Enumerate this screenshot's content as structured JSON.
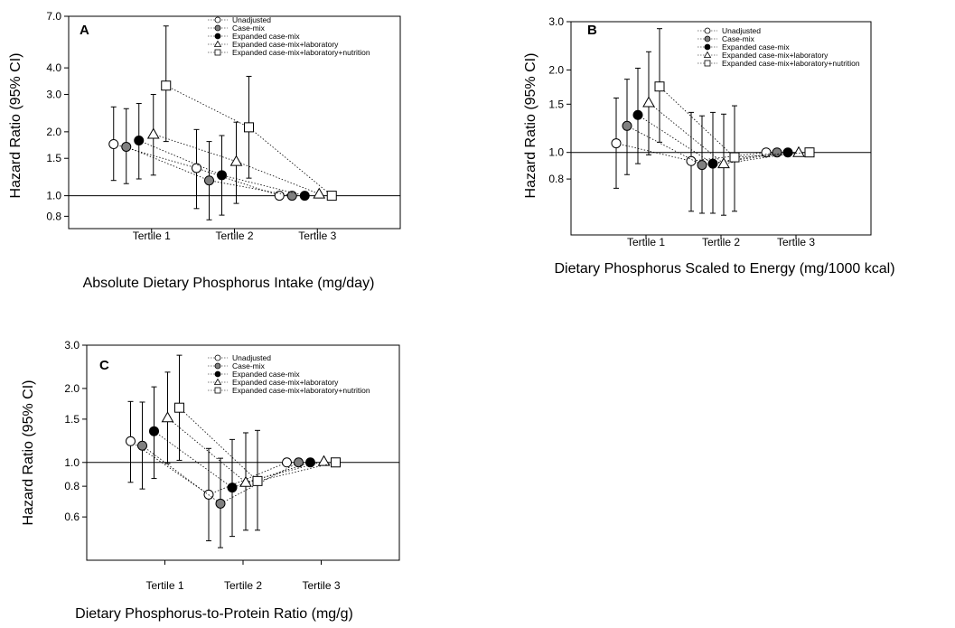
{
  "chart_data": [
    {
      "panel": "A",
      "type": "scatter",
      "title": "",
      "xlabel": "Absolute Dietary Phosphorus Intake (mg/day)",
      "ylabel": "Hazard Ratio (95% CI)",
      "y_scale": "log",
      "ylim": [
        0.7,
        7.0
      ],
      "yticks": [
        "0.8",
        "1.0",
        "1.5",
        "2.0",
        "3.0",
        "4.0",
        "7.0"
      ],
      "categories": [
        "Tertile 1",
        "Tertile 2",
        "Tertile 3"
      ],
      "reference_line": 1.0,
      "grid": false,
      "legend_position": "top-right",
      "series": [
        {
          "name": "Unadjusted",
          "marker": "circle-open",
          "values": [
            1.75,
            1.35,
            1.0
          ],
          "lower": [
            1.18,
            0.87,
            1.0
          ],
          "upper": [
            2.62,
            2.05,
            1.0
          ]
        },
        {
          "name": "Case-mix",
          "marker": "circle-gray",
          "values": [
            1.7,
            1.18,
            1.0
          ],
          "lower": [
            1.14,
            0.77,
            1.0
          ],
          "upper": [
            2.57,
            1.8,
            1.0
          ]
        },
        {
          "name": "Expanded case-mix",
          "marker": "circle-black",
          "values": [
            1.82,
            1.25,
            1.0
          ],
          "lower": [
            1.2,
            0.81,
            1.0
          ],
          "upper": [
            2.72,
            1.92,
            1.0
          ]
        },
        {
          "name": "Expanded case-mix+laboratory",
          "marker": "triangle-open",
          "values": [
            1.95,
            1.45,
            1.02
          ],
          "lower": [
            1.25,
            0.92,
            1.02
          ],
          "upper": [
            3.0,
            2.22,
            1.02
          ]
        },
        {
          "name": "Expanded case-mix+laboratory+nutrition",
          "marker": "square-open",
          "values": [
            3.3,
            2.1,
            1.0
          ],
          "lower": [
            1.8,
            1.21,
            1.0
          ],
          "upper": [
            6.3,
            3.65,
            1.0
          ]
        }
      ]
    },
    {
      "panel": "B",
      "type": "scatter",
      "title": "",
      "xlabel": "Dietary Phosphorus Scaled to Energy (mg/1000 kcal)",
      "ylabel": "Hazard Ratio (95% CI)",
      "y_scale": "log",
      "ylim": [
        0.5,
        3.0
      ],
      "yticks": [
        "0.8",
        "1.0",
        "1.5",
        "2.0",
        "3.0"
      ],
      "categories": [
        "Tertile 1",
        "Tertile 2",
        "Tertile 3"
      ],
      "reference_line": 1.0,
      "grid": false,
      "legend_position": "top-right",
      "series": [
        {
          "name": "Unadjusted",
          "marker": "circle-open",
          "values": [
            1.08,
            0.93,
            1.0
          ],
          "lower": [
            0.74,
            0.61,
            1.0
          ],
          "upper": [
            1.58,
            1.4,
            1.0
          ]
        },
        {
          "name": "Case-mix",
          "marker": "circle-gray",
          "values": [
            1.25,
            0.9,
            1.0
          ],
          "lower": [
            0.83,
            0.6,
            1.0
          ],
          "upper": [
            1.85,
            1.36,
            1.0
          ]
        },
        {
          "name": "Expanded case-mix",
          "marker": "circle-black",
          "values": [
            1.37,
            0.91,
            1.0
          ],
          "lower": [
            0.91,
            0.6,
            1.0
          ],
          "upper": [
            2.03,
            1.4,
            1.0
          ]
        },
        {
          "name": "Expanded case-mix+laboratory",
          "marker": "triangle-open",
          "values": [
            1.52,
            0.91,
            1.0
          ],
          "lower": [
            0.98,
            0.59,
            1.0
          ],
          "upper": [
            2.33,
            1.38,
            1.0
          ]
        },
        {
          "name": "Expanded case-mix+laboratory+nutrition",
          "marker": "square-open",
          "values": [
            1.74,
            0.96,
            1.0
          ],
          "lower": [
            1.09,
            0.61,
            1.0
          ],
          "upper": [
            2.83,
            1.48,
            1.0
          ]
        }
      ]
    },
    {
      "panel": "C",
      "type": "scatter",
      "title": "",
      "xlabel": "Dietary Phosphorus-to-Protein Ratio (mg/g)",
      "ylabel": "Hazard Ratio (95% CI)",
      "y_scale": "log",
      "ylim": [
        0.4,
        3.0
      ],
      "yticks": [
        "0.6",
        "0.8",
        "1.0",
        "1.5",
        "2.0",
        "3.0"
      ],
      "categories": [
        "Tertile 1",
        "Tertile 2",
        "Tertile 3"
      ],
      "reference_line": 1.0,
      "grid": false,
      "legend_position": "top-right",
      "series": [
        {
          "name": "Unadjusted",
          "marker": "circle-open",
          "values": [
            1.22,
            0.74,
            1.0
          ],
          "lower": [
            0.83,
            0.48,
            1.0
          ],
          "upper": [
            1.77,
            1.14,
            1.0
          ]
        },
        {
          "name": "Case-mix",
          "marker": "circle-gray",
          "values": [
            1.17,
            0.68,
            1.0
          ],
          "lower": [
            0.78,
            0.45,
            1.0
          ],
          "upper": [
            1.76,
            1.04,
            1.0
          ]
        },
        {
          "name": "Expanded case-mix",
          "marker": "circle-black",
          "values": [
            1.34,
            0.79,
            1.0
          ],
          "lower": [
            0.86,
            0.5,
            1.0
          ],
          "upper": [
            2.03,
            1.24,
            1.0
          ]
        },
        {
          "name": "Expanded case-mix+laboratory",
          "marker": "triangle-open",
          "values": [
            1.52,
            0.83,
            1.01
          ],
          "lower": [
            0.99,
            0.53,
            1.01
          ],
          "upper": [
            2.33,
            1.32,
            1.01
          ]
        },
        {
          "name": "Expanded case-mix+laboratory+nutrition",
          "marker": "square-open",
          "values": [
            1.67,
            0.84,
            1.0
          ],
          "lower": [
            1.02,
            0.53,
            1.0
          ],
          "upper": [
            2.73,
            1.35,
            1.0
          ]
        }
      ]
    }
  ]
}
